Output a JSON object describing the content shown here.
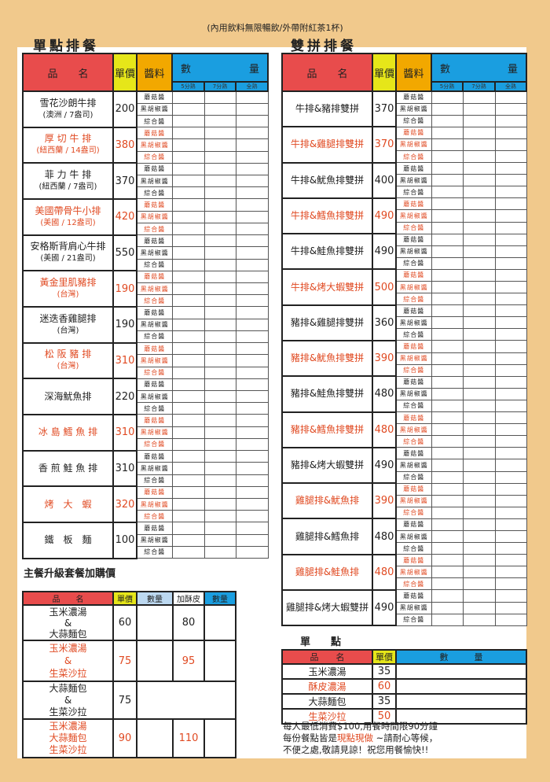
{
  "top_note": "(內用飲料無限暢飲/外帶附紅茶1杯)",
  "left_title": "單點排餐",
  "right_title": "雙拼排餐",
  "headers": {
    "name": "品　　名",
    "price": "單價",
    "sauce": "醬料",
    "qty_left": "數",
    "qty_right": "量",
    "doneness": [
      "5分熟",
      "7分熟",
      "全熟"
    ]
  },
  "sauces": [
    "蘑菇醬",
    "黑胡椒醬",
    "綜合醬"
  ],
  "single_steaks": [
    {
      "name": "雪花沙朗牛排",
      "origin": "(澳洲 / 7盎司)",
      "price": "200",
      "red": false
    },
    {
      "name": "厚 切 牛 排",
      "origin": "(紐西蘭 / 14盎司)",
      "price": "380",
      "red": true
    },
    {
      "name": "菲 力 牛 排",
      "origin": "(紐西蘭 / 7盎司)",
      "price": "370",
      "red": false
    },
    {
      "name": "美國帶骨牛小排",
      "origin": "(美國 / 12盎司)",
      "price": "420",
      "red": true
    },
    {
      "name": "安格斯背肩心牛排",
      "origin": "(美國 / 21盎司)",
      "price": "550",
      "red": false
    },
    {
      "name": "黃金里肌豬排",
      "origin": "(台灣)",
      "price": "190",
      "red": true
    },
    {
      "name": "迷迭香雞腿排",
      "origin": "(台灣)",
      "price": "190",
      "red": false
    },
    {
      "name": "松 阪 豬 排",
      "origin": "(台灣)",
      "price": "310",
      "red": true
    },
    {
      "name": "深海魷魚排",
      "origin": "",
      "price": "220",
      "red": false
    },
    {
      "name": "冰 島 鱈 魚 排",
      "origin": "",
      "price": "310",
      "red": true
    },
    {
      "name": "香 煎 鮭 魚 排",
      "origin": "",
      "price": "310",
      "red": false
    },
    {
      "name": "烤　大　蝦",
      "origin": "",
      "price": "320",
      "red": true
    },
    {
      "name": "鐵　板　麵",
      "origin": "",
      "price": "100",
      "red": false
    }
  ],
  "combo_steaks": [
    {
      "name": "牛排&豬排雙拼",
      "price": "370",
      "red": false
    },
    {
      "name": "牛排&雞腿排雙拼",
      "price": "370",
      "red": true
    },
    {
      "name": "牛排&魷魚排雙拼",
      "price": "400",
      "red": false
    },
    {
      "name": "牛排&鱈魚排雙拼",
      "price": "490",
      "red": true
    },
    {
      "name": "牛排&鮭魚排雙拼",
      "price": "490",
      "red": false
    },
    {
      "name": "牛排&烤大蝦雙拼",
      "price": "500",
      "red": true
    },
    {
      "name": "豬排&雞腿排雙拼",
      "price": "360",
      "red": false
    },
    {
      "name": "豬排&魷魚排雙拼",
      "price": "390",
      "red": true
    },
    {
      "name": "豬排&鮭魚排雙拼",
      "price": "480",
      "red": false
    },
    {
      "name": "豬排&鱈魚排雙拼",
      "price": "480",
      "red": true
    },
    {
      "name": "豬排&烤大蝦雙拼",
      "price": "490",
      "red": false
    },
    {
      "name": "雞腿排&魷魚排",
      "price": "390",
      "red": true
    },
    {
      "name": "雞腿排&鱈魚排",
      "price": "480",
      "red": false
    },
    {
      "name": "雞腿排&鮭魚排",
      "price": "480",
      "red": true
    },
    {
      "name": "雞腿排&烤大蝦雙拼",
      "price": "490",
      "red": false
    }
  ],
  "upgrade": {
    "title": "主餐升級套餐加購價",
    "headers": {
      "name": "品　　名",
      "price": "單價",
      "qty": "數量",
      "crust": "加酥皮",
      "qty2": "數量"
    },
    "rows": [
      {
        "lines": [
          "玉米濃湯",
          "&",
          "大蒜麵包"
        ],
        "price": "60",
        "crust": "80",
        "red": false
      },
      {
        "lines": [
          "玉米濃湯",
          "&",
          "生菜沙拉"
        ],
        "price": "75",
        "crust": "95",
        "red": true
      },
      {
        "lines": [
          "大蒜麵包",
          "&",
          "生菜沙拉"
        ],
        "price": "75",
        "crust": "",
        "red": false
      },
      {
        "lines": [
          "玉米濃湯",
          "大蒜麵包",
          "生菜沙拉"
        ],
        "price": "90",
        "crust": "110",
        "red": true
      }
    ]
  },
  "sides": {
    "title": "單　　點",
    "headers": {
      "name": "品　　名",
      "price": "單價",
      "qty": "數　　　量"
    },
    "rows": [
      {
        "name": "玉米濃湯",
        "price": "35",
        "red": false
      },
      {
        "name": "酥皮濃湯",
        "price": "60",
        "red": true
      },
      {
        "name": "大蒜麵包",
        "price": "35",
        "red": false
      },
      {
        "name": "生菜沙拉",
        "price": "50",
        "red": true
      }
    ]
  },
  "notes": {
    "line1": "每人最低消費$100,用餐時間限90分鐘",
    "line2a": "每份餐點皆是",
    "line2b": "現點現做",
    "line2c": " ~請耐心等候，",
    "line3": "不便之處,敬請見諒！祝您用餐愉快!!"
  },
  "colors": {
    "name_header": "#e84c4c",
    "price_header": "#e6e619",
    "sauce_header": "#f2a800",
    "qty_header": "#1a9ee0",
    "highlight": "#e04a22",
    "background": "#f1c98c"
  }
}
